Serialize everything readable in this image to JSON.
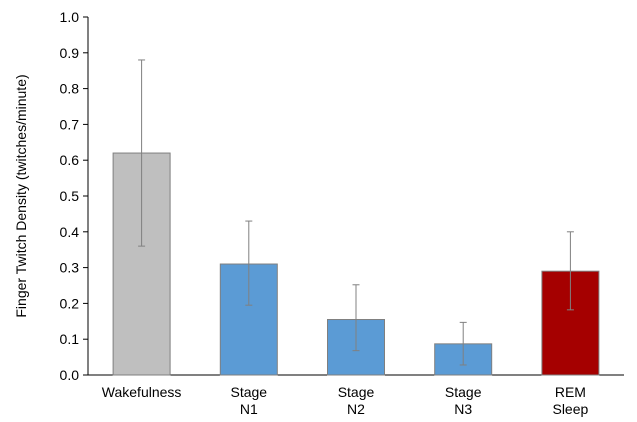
{
  "chart_data": {
    "type": "bar",
    "title": "",
    "xlabel": "",
    "ylabel": "Finger Twitch Density (twitches/minute)",
    "ylim": [
      0,
      1.0
    ],
    "yticks": [
      "0.0",
      "0.1",
      "0.2",
      "0.3",
      "0.4",
      "0.5",
      "0.6",
      "0.7",
      "0.8",
      "0.9",
      "1.0"
    ],
    "grid": false,
    "legend": "none",
    "categories": [
      [
        "Wakefulness"
      ],
      [
        "Stage",
        "N1"
      ],
      [
        "Stage",
        "N2"
      ],
      [
        "Stage",
        "N3"
      ],
      [
        "REM",
        "Sleep"
      ]
    ],
    "values": [
      0.62,
      0.31,
      0.155,
      0.087,
      0.29
    ],
    "error_low": [
      0.36,
      0.195,
      0.068,
      0.028,
      0.182
    ],
    "error_high": [
      0.88,
      0.43,
      0.252,
      0.147,
      0.4
    ],
    "colors": [
      "#bfbfbf",
      "#5b9bd5",
      "#5b9bd5",
      "#5b9bd5",
      "#a50000"
    ]
  }
}
